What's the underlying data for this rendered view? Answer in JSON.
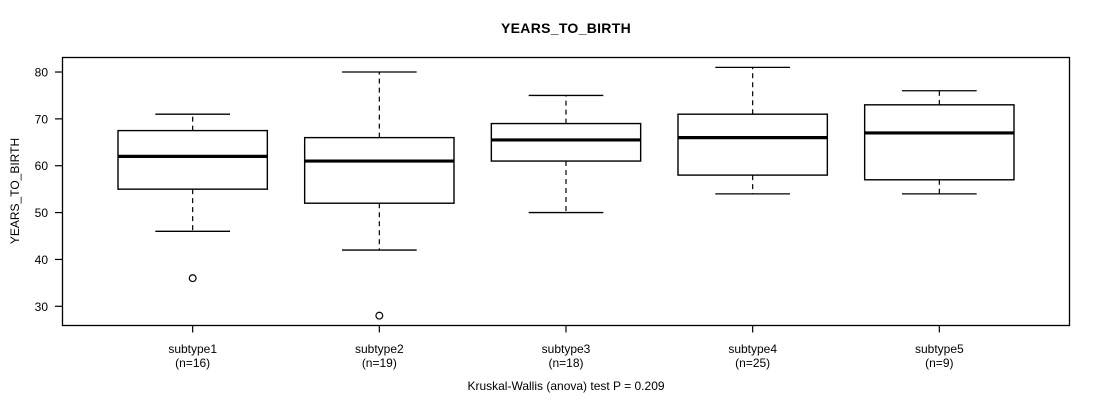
{
  "chart_data": {
    "type": "boxplot",
    "title": "YEARS_TO_BIRTH",
    "ylabel": "YEARS_TO_BIRTH",
    "caption": "Kruskal-Wallis (anova) test P = 0.209",
    "y_ticks": [
      30,
      40,
      50,
      60,
      70,
      80
    ],
    "ylim": [
      25.9,
      83.1
    ],
    "grid": false,
    "legend": "none",
    "groups": [
      {
        "label": "subtype1",
        "n_label": "(n=16)",
        "n": 16,
        "lower_whisker": 46,
        "q1": 55,
        "median": 62,
        "q3": 67.5,
        "upper_whisker": 71,
        "outliers": [
          36
        ]
      },
      {
        "label": "subtype2",
        "n_label": "(n=19)",
        "n": 19,
        "lower_whisker": 42,
        "q1": 52,
        "median": 61,
        "q3": 66,
        "upper_whisker": 80,
        "outliers": [
          28
        ]
      },
      {
        "label": "subtype3",
        "n_label": "(n=18)",
        "n": 18,
        "lower_whisker": 50,
        "q1": 61,
        "median": 65.5,
        "q3": 69,
        "upper_whisker": 75,
        "outliers": []
      },
      {
        "label": "subtype4",
        "n_label": "(n=25)",
        "n": 25,
        "lower_whisker": 54,
        "q1": 58,
        "median": 66,
        "q3": 71,
        "upper_whisker": 81,
        "outliers": []
      },
      {
        "label": "subtype5",
        "n_label": "(n=9)",
        "n": 9,
        "lower_whisker": 54,
        "q1": 57,
        "median": 67,
        "q3": 73,
        "upper_whisker": 76,
        "outliers": []
      }
    ],
    "colors": {
      "stroke": "#000000",
      "box_fill": "#ffffff",
      "median": "#000000",
      "background": "#ffffff"
    }
  }
}
